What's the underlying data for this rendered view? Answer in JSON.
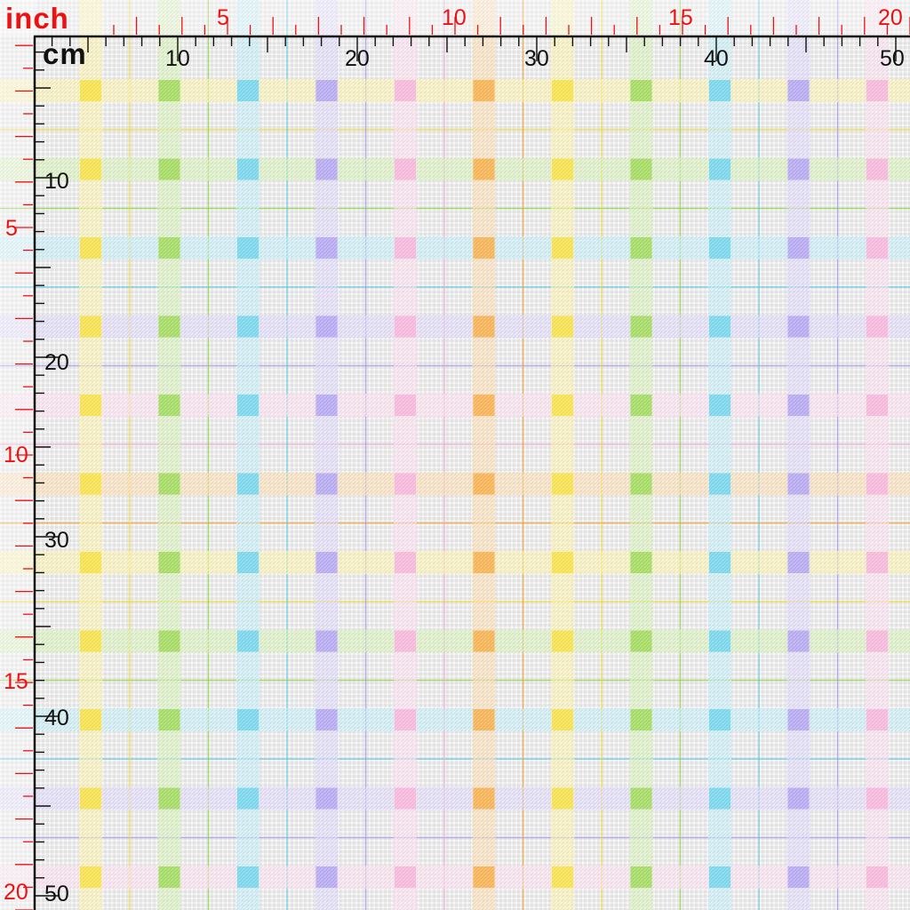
{
  "ruler": {
    "inch_unit": "inch",
    "cm_unit": "cm",
    "inch_top_labels": [
      "5",
      "10",
      "15",
      "20"
    ],
    "cm_top_labels": [
      "10",
      "20",
      "30",
      "40",
      "50"
    ],
    "cm_left_labels": [
      "10",
      "20",
      "30",
      "40",
      "50"
    ],
    "inch_left_labels": [
      "5",
      "10",
      "15",
      "20"
    ],
    "inch_color": "#ee1111",
    "cm_color": "#111111"
  },
  "fabric": {
    "background": "#ececec",
    "colors": {
      "yellow": "#f2d926",
      "green": "#8fd13f",
      "cyan": "#5bcbe6",
      "purple": "#a596ec",
      "pink": "#f2a6d2",
      "orange": "#f2a02e"
    },
    "vertical_stripes": [
      "yellow",
      "green",
      "cyan",
      "purple",
      "pink",
      "orange",
      "yellow",
      "green",
      "cyan",
      "purple",
      "pink"
    ],
    "horizontal_stripes": [
      "yellow",
      "green",
      "cyan",
      "purple",
      "pink",
      "orange",
      "yellow",
      "green",
      "cyan",
      "purple",
      "pink"
    ],
    "thin_lines": [
      "yellow",
      "green",
      "cyan",
      "purple",
      "pink",
      "orange",
      "yellow",
      "green",
      "cyan",
      "purple",
      "pink"
    ]
  }
}
